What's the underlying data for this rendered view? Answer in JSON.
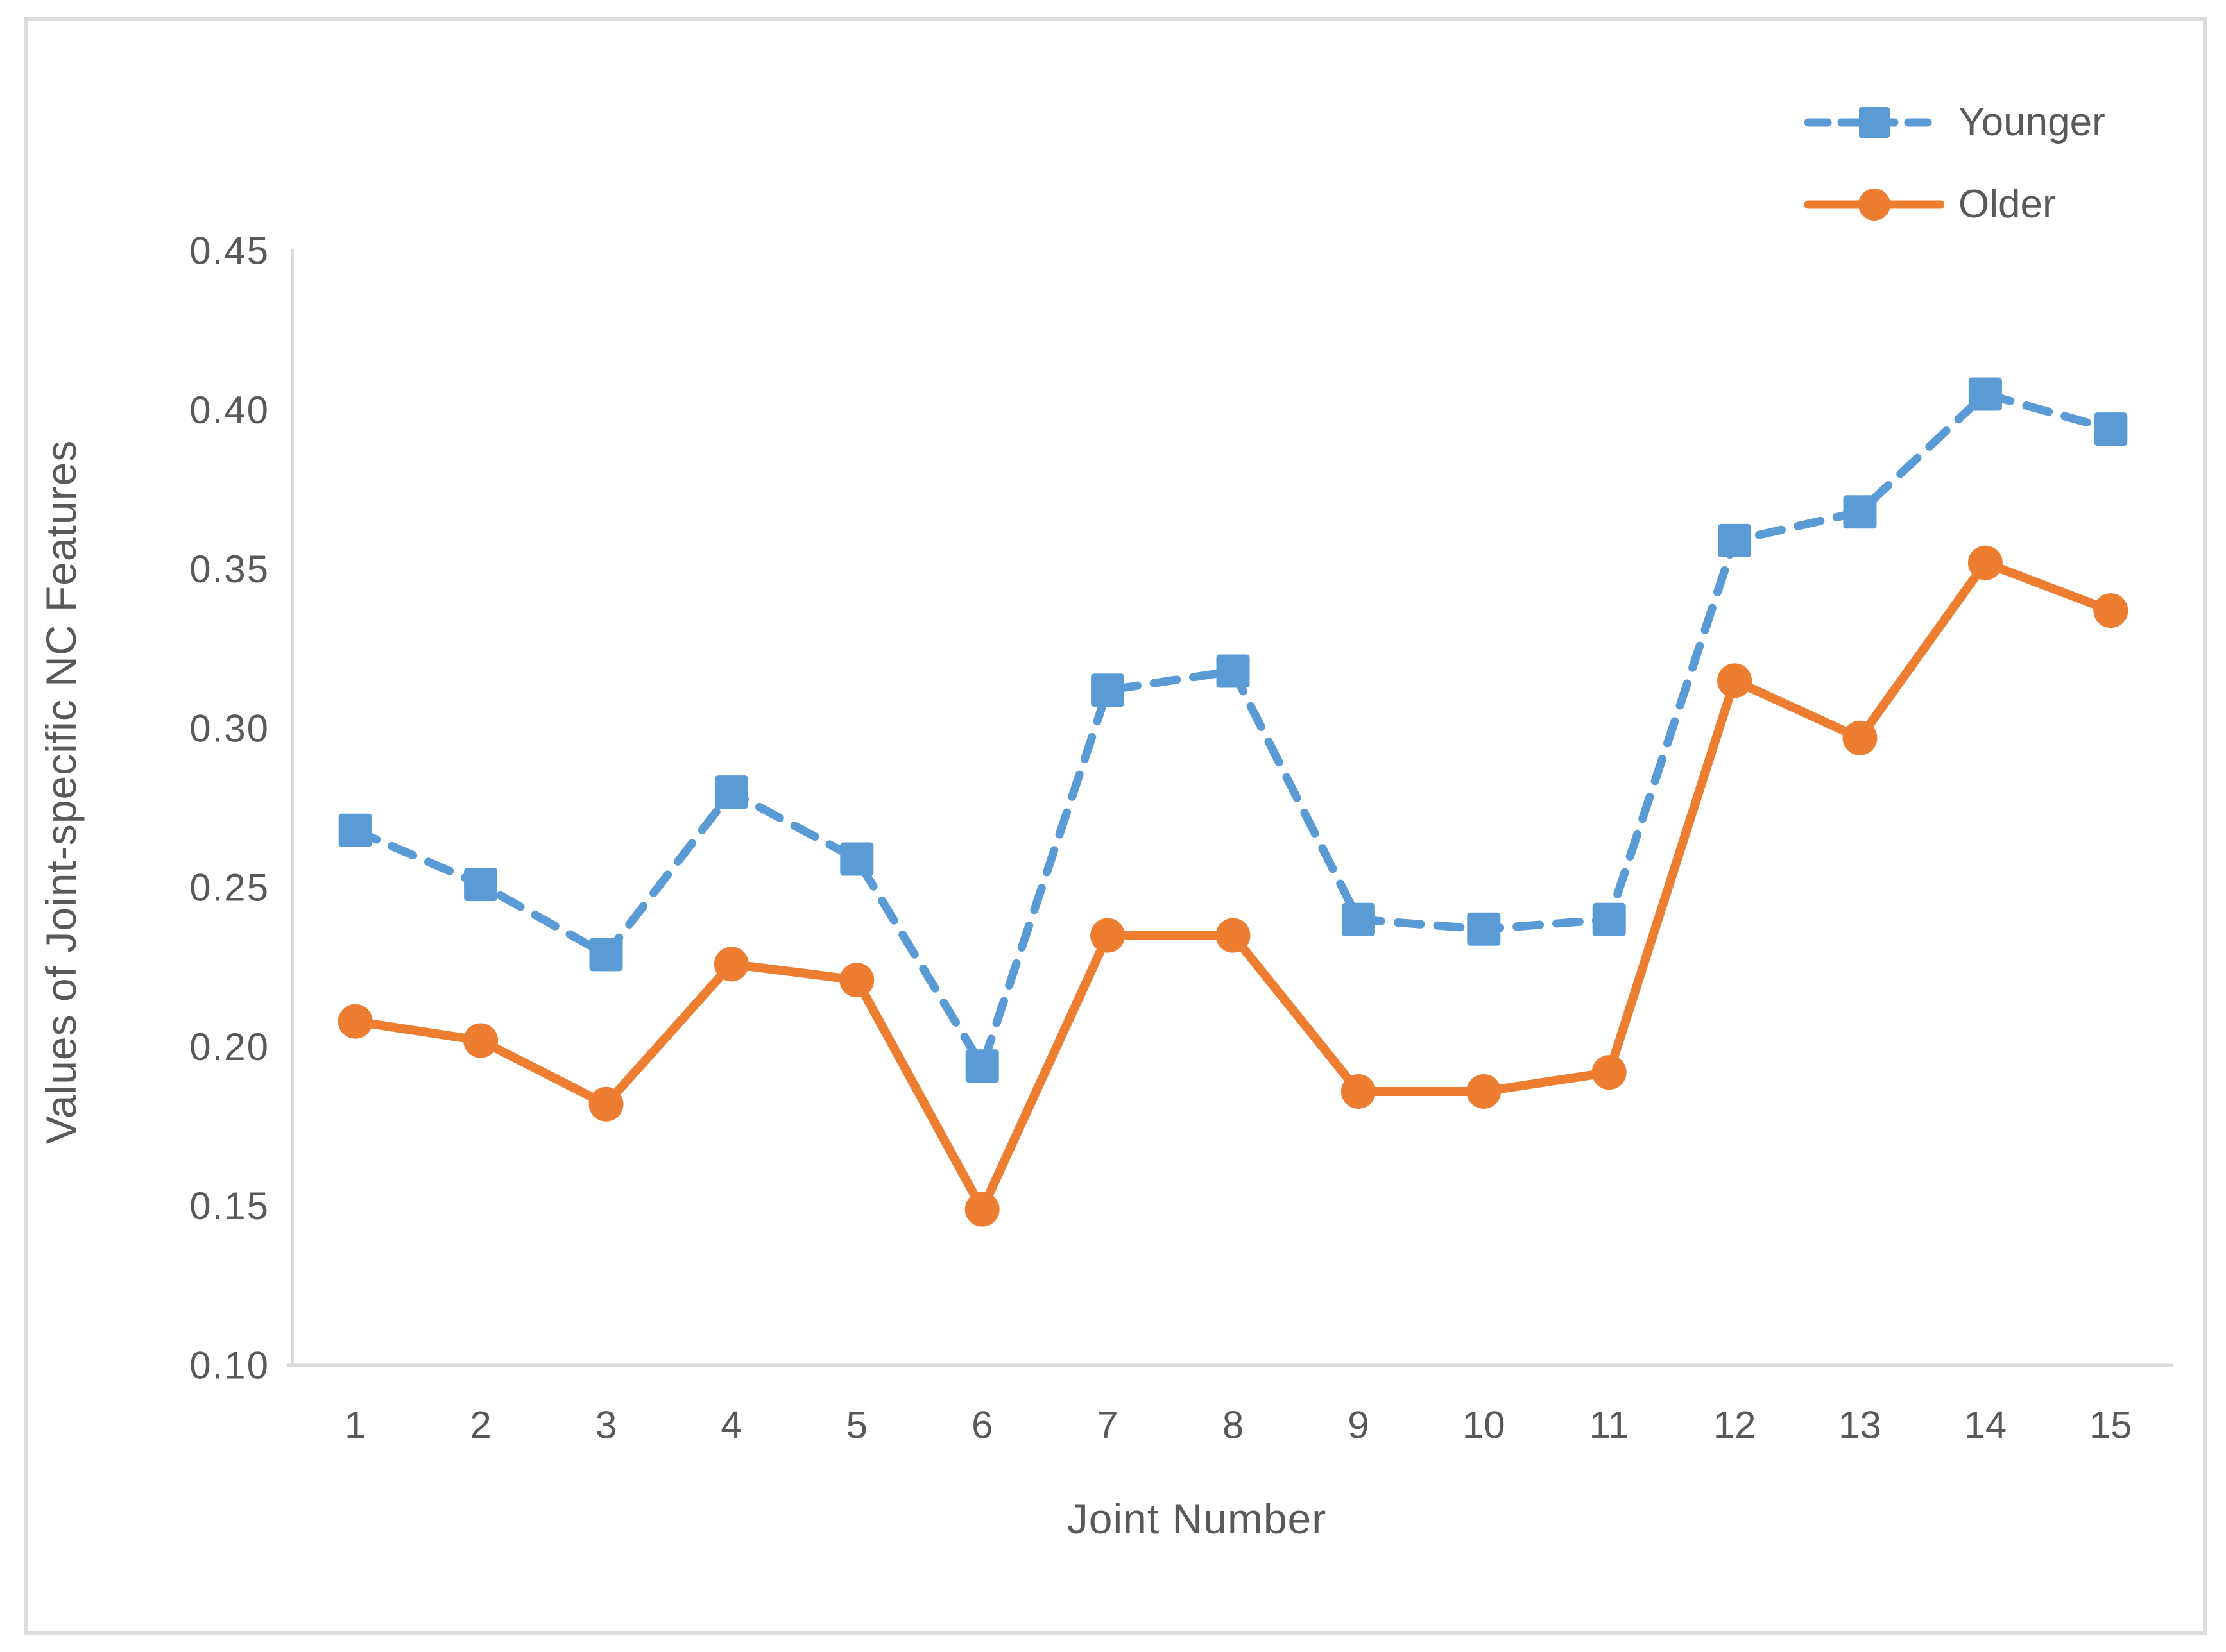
{
  "figure": {
    "background": "#ffffff",
    "border_color": "#dcdcdc"
  },
  "chart_data": {
    "type": "line",
    "title": "",
    "xlabel": "Joint Number",
    "ylabel": "Values of Joint-specific NC Features",
    "categories": [
      "1",
      "2",
      "3",
      "4",
      "5",
      "6",
      "7",
      "8",
      "9",
      "10",
      "11",
      "12",
      "13",
      "14",
      "15"
    ],
    "series": [
      {
        "name": "Younger",
        "color": "#5b9bd5",
        "line_style": "dashed",
        "marker": "square",
        "values": [
          0.268,
          0.251,
          0.229,
          0.28,
          0.259,
          0.194,
          0.312,
          0.318,
          0.24,
          0.237,
          0.24,
          0.359,
          0.368,
          0.405,
          0.394
        ]
      },
      {
        "name": "Older",
        "color": "#ed7d31",
        "line_style": "solid",
        "marker": "circle",
        "values": [
          0.208,
          0.202,
          0.182,
          0.226,
          0.221,
          0.149,
          0.235,
          0.235,
          0.186,
          0.186,
          0.192,
          0.315,
          0.297,
          0.352,
          0.337
        ]
      }
    ],
    "ylim": [
      0.1,
      0.45
    ],
    "y_ticks": [
      0.1,
      0.15,
      0.2,
      0.25,
      0.3,
      0.35,
      0.4,
      0.45
    ],
    "y_tick_decimals": 2,
    "grid": false,
    "legend_position": "top-right",
    "axis_color": "#d9d9d9",
    "text_color": "#595959"
  }
}
